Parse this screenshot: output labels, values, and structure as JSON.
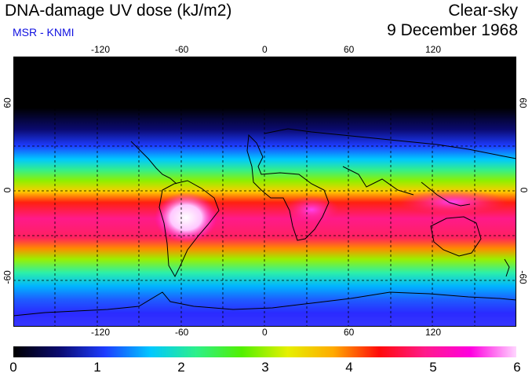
{
  "header": {
    "title": "DNA-damage UV dose (kJ/m2)",
    "credit": "MSR - KNMI",
    "sky_condition": "Clear-sky",
    "date": "9 December 1968"
  },
  "map": {
    "lon_ticks": [
      "-120",
      "-60",
      "0",
      "60",
      "120"
    ],
    "lat_ticks_left": [
      "60",
      "0",
      "-60"
    ],
    "lat_ticks_right": [
      "60",
      "0",
      "-60"
    ]
  },
  "colorbar": {
    "labels": [
      "0",
      "1",
      "2",
      "3",
      "4",
      "5",
      "6"
    ],
    "min": 0,
    "max": 6,
    "colors": [
      "#000000",
      "#0a0a6e",
      "#1e3cff",
      "#00c8ff",
      "#2cf08a",
      "#52f000",
      "#e6f000",
      "#ffaa00",
      "#ff0a0a",
      "#ff1a8a",
      "#ff00e0",
      "#ffd6ff"
    ]
  }
}
